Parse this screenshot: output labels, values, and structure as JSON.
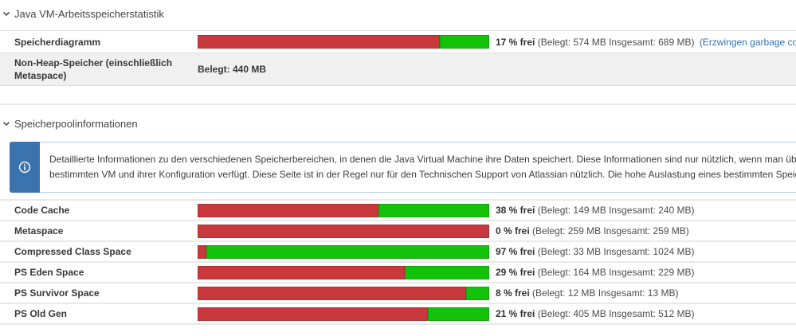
{
  "colors": {
    "bar_used": "#c9383c",
    "bar_free": "#12c30a",
    "link": "#3572b0",
    "info_blue": "#3b73af"
  },
  "section_memory": {
    "title": "Java VM-Arbeitsspeicherstatistik",
    "rows": {
      "heap": {
        "label": "Speicherdiagramm",
        "free_percent": 17,
        "free_label": "17 % frei",
        "detail": "(Belegt: 574 MB Insgesamt: 689 MB)",
        "gc_link": "(Erzwingen garbage collection)"
      },
      "non_heap": {
        "label": "Non-Heap-Speicher (einschließlich Metaspace)",
        "value": "Belegt: 440 MB"
      }
    }
  },
  "section_pools": {
    "title": "Speicherpoolinformationen",
    "info_line1": "Detaillierte Informationen zu den verschiedenen Speicherbereichen, in denen die Java Virtual Machine ihre Daten speichert. Diese Informationen sind nur nützlich, wenn man über gute Kenntnisse der automatischen",
    "info_line2": "bestimmten VM und ihrer Konfiguration verfügt. Diese Seite ist in der Regel nur für den Technischen Support von Atlassian nützlich. Die hohe Auslastung eines bestimmten Speicherpools stellt in der Regel kein Problem",
    "pools": [
      {
        "label": "Code Cache",
        "free_percent": 38,
        "free_label": "38 % frei",
        "detail": "(Belegt: 149 MB Insgesamt: 240 MB)"
      },
      {
        "label": "Metaspace",
        "free_percent": 0,
        "free_label": "0 % frei",
        "detail": "(Belegt: 259 MB Insgesamt: 259 MB)"
      },
      {
        "label": "Compressed Class Space",
        "free_percent": 97,
        "free_label": "97 % frei",
        "detail": "(Belegt: 33 MB Insgesamt: 1024 MB)"
      },
      {
        "label": "PS Eden Space",
        "free_percent": 29,
        "free_label": "29 % frei",
        "detail": "(Belegt: 164 MB Insgesamt: 229 MB)"
      },
      {
        "label": "PS Survivor Space",
        "free_percent": 8,
        "free_label": "8 % frei",
        "detail": "(Belegt: 12 MB Insgesamt: 13 MB)"
      },
      {
        "label": "PS Old Gen",
        "free_percent": 21,
        "free_label": "21 % frei",
        "detail": "(Belegt: 405 MB Insgesamt: 512 MB)"
      }
    ]
  }
}
